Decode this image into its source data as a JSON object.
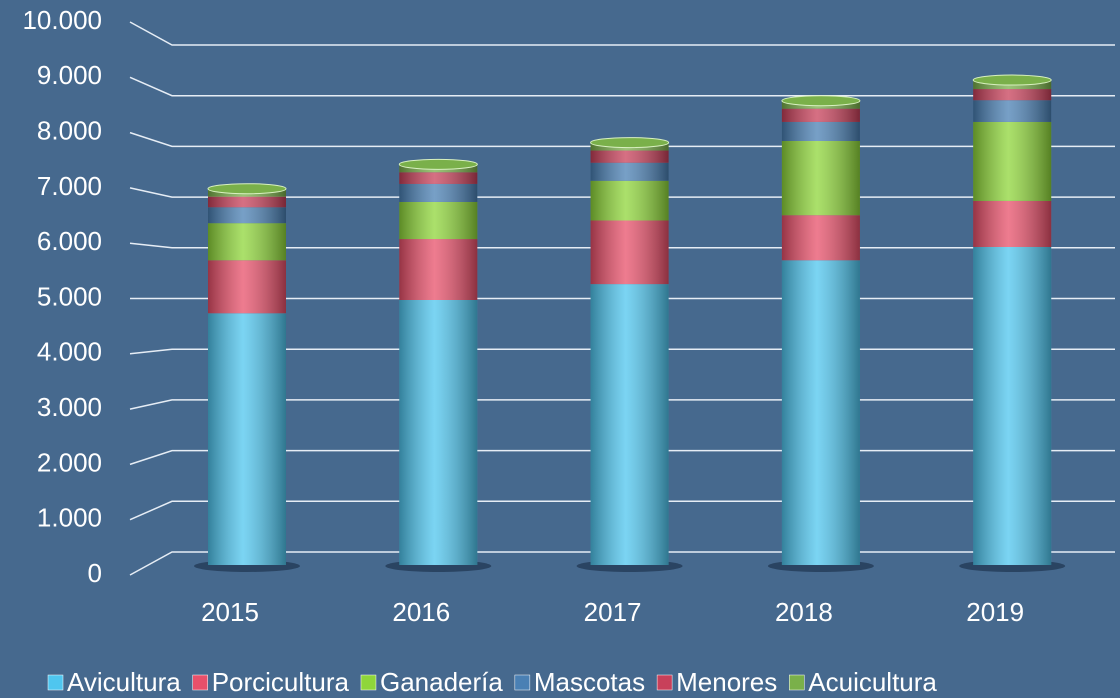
{
  "chart_data": {
    "type": "stacked_bar",
    "categories": [
      "2015",
      "2016",
      "2017",
      "2018",
      "2019"
    ],
    "series": [
      {
        "name": "Avicultura",
        "color": "#4fc6ef",
        "values": [
          4750,
          5000,
          5300,
          5750,
          6000
        ]
      },
      {
        "name": "Porcicultura",
        "color": "#e8506a",
        "values": [
          1000,
          1150,
          1200,
          850,
          870
        ]
      },
      {
        "name": "Ganadería",
        "color": "#8fd63a",
        "values": [
          700,
          700,
          750,
          1400,
          1490
        ]
      },
      {
        "name": "Mascotas",
        "color": "#4a80b4",
        "values": [
          300,
          340,
          340,
          360,
          410
        ]
      },
      {
        "name": "Menores",
        "color": "#c8405a",
        "values": [
          200,
          220,
          230,
          250,
          210
        ]
      },
      {
        "name": "Acuicultura",
        "color": "#7ab04a",
        "values": [
          150,
          150,
          150,
          150,
          170
        ]
      }
    ],
    "ylim": [
      0,
      10000
    ],
    "yticks": [
      0,
      {
        "value": 1000,
        "label": "1.000"
      },
      {
        "value": 2000,
        "label": "2.000"
      },
      {
        "value": 3000,
        "label": "3.000"
      },
      {
        "value": 4000,
        "label": "4.000"
      },
      {
        "value": 5000,
        "label": "5.000"
      },
      {
        "value": 6000,
        "label": "6.000"
      },
      {
        "value": 7000,
        "label": "7.000"
      },
      {
        "value": 8000,
        "label": "8.000"
      },
      {
        "value": 9000,
        "label": "9.000"
      },
      {
        "value": 10000,
        "label": "10.000"
      }
    ],
    "grid": true,
    "legend": "bottom"
  }
}
